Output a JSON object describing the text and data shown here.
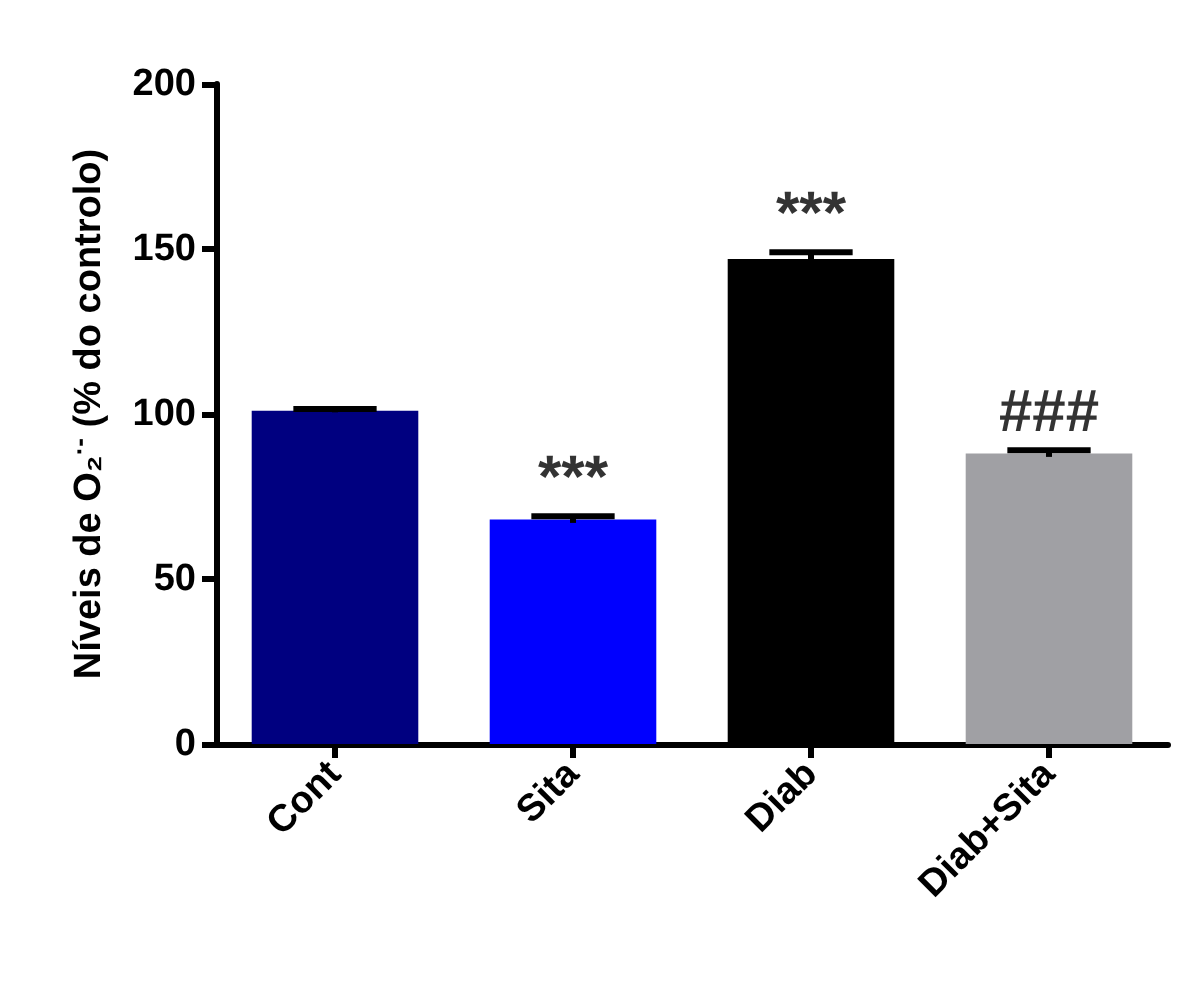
{
  "chart_data": {
    "type": "bar",
    "ylabel": "Níveis de O₂$^{·-}$ (% do controlo)",
    "categories": [
      "Cont",
      "Sita",
      "Diab",
      "Diab+Sita"
    ],
    "values": [
      101,
      68,
      147,
      88
    ],
    "colors": [
      "#000080",
      "#0000ff",
      "#000000",
      "#a0a0a4"
    ],
    "errors": [
      0.5,
      1,
      2,
      1
    ],
    "ylim": [
      0,
      200
    ],
    "yticks": [
      0,
      50,
      100,
      150,
      200
    ],
    "grid": false,
    "annotations": [
      {
        "text": "***",
        "x": "Sita",
        "y": 69
      },
      {
        "text": "***",
        "x": "Diab",
        "y": 149
      },
      {
        "text": "###",
        "x": "Diab+Sita",
        "y": 89
      }
    ]
  }
}
